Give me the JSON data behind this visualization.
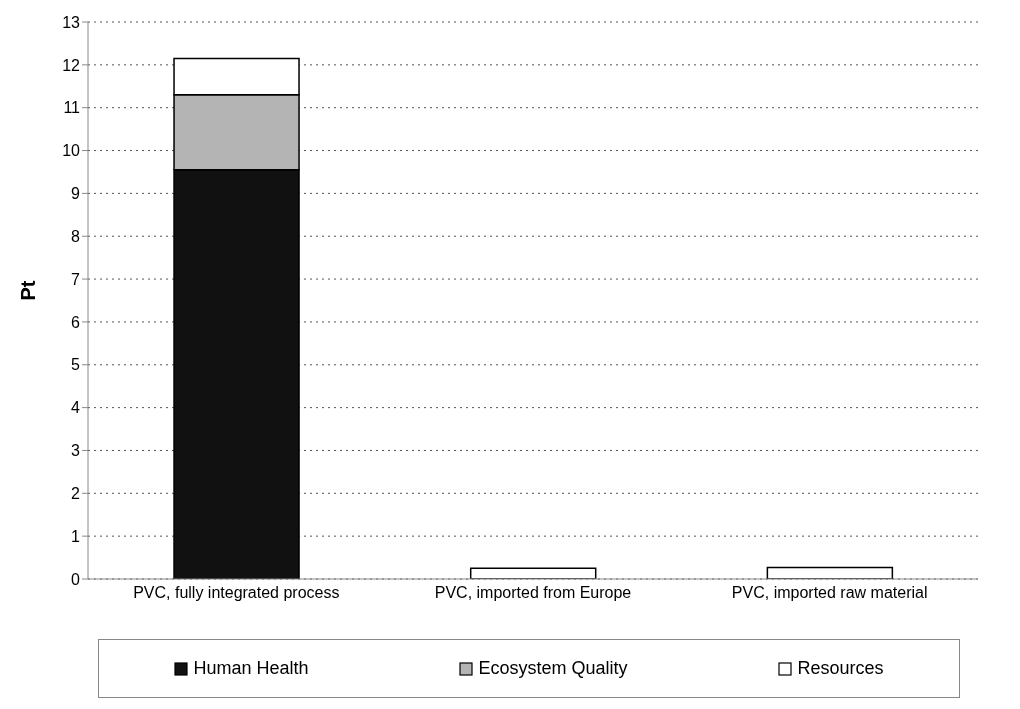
{
  "chart_data": {
    "type": "bar",
    "stacked": true,
    "ylabel": "Pt",
    "categories": [
      "PVC, fully integrated process",
      "PVC, imported from Europe",
      "PVC, imported raw material"
    ],
    "series": [
      {
        "name": "Human Health",
        "color": "#111111",
        "values": [
          9.55,
          null,
          null
        ]
      },
      {
        "name": "Ecosystem Quality",
        "color": "#b4b4b4",
        "values": [
          1.75,
          null,
          null
        ]
      },
      {
        "name": "Resources",
        "color": "#ffffff",
        "values": [
          0.85,
          0.25,
          0.27
        ]
      }
    ],
    "ylim": [
      0,
      13
    ],
    "yticks": [
      0,
      1,
      2,
      3,
      4,
      5,
      6,
      7,
      8,
      9,
      10,
      11,
      12,
      13
    ],
    "grid": "y",
    "legend": "bottom"
  }
}
